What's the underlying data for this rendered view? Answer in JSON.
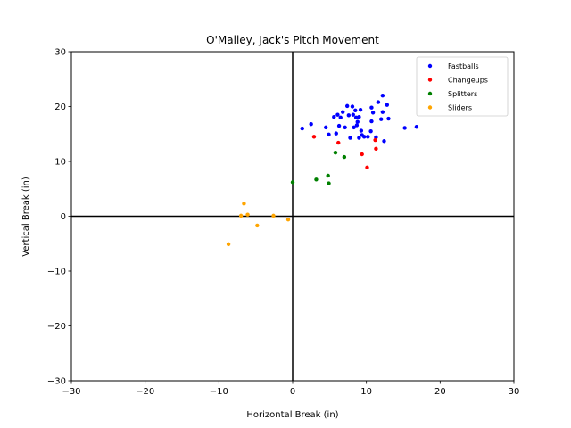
{
  "chart_data": {
    "type": "scatter",
    "title": "O'Malley, Jack's Pitch Movement",
    "xlabel": "Horizontal Break (in)",
    "ylabel": "Vertical Break (in)",
    "xlim": [
      -30,
      30
    ],
    "ylim": [
      -30,
      30
    ],
    "xticks": [
      -30,
      -20,
      -10,
      0,
      10,
      20,
      30
    ],
    "yticks": [
      -30,
      -20,
      -10,
      0,
      10,
      20,
      30
    ],
    "xtick_labels": [
      "−30",
      "−20",
      "−10",
      "0",
      "10",
      "20",
      "30"
    ],
    "ytick_labels": [
      "−30",
      "−20",
      "−10",
      "0",
      "10",
      "20",
      "30"
    ],
    "zero_lines": true,
    "grid": false,
    "legend_position": "top-right",
    "series": [
      {
        "name": "Fastballs",
        "color": "#0000ff",
        "points": [
          [
            1.3,
            16.0
          ],
          [
            2.5,
            16.8
          ],
          [
            4.5,
            16.2
          ],
          [
            4.9,
            14.9
          ],
          [
            5.6,
            18.1
          ],
          [
            5.9,
            15.1
          ],
          [
            6.1,
            18.5
          ],
          [
            6.5,
            18.0
          ],
          [
            6.3,
            16.5
          ],
          [
            6.8,
            19.0
          ],
          [
            7.1,
            16.2
          ],
          [
            7.4,
            20.1
          ],
          [
            7.6,
            18.4
          ],
          [
            7.8,
            14.3
          ],
          [
            8.1,
            20.0
          ],
          [
            8.2,
            18.5
          ],
          [
            8.3,
            16.2
          ],
          [
            8.5,
            19.3
          ],
          [
            8.6,
            18.0
          ],
          [
            8.7,
            16.6
          ],
          [
            8.8,
            17.2
          ],
          [
            9.0,
            14.3
          ],
          [
            9.0,
            18.1
          ],
          [
            9.2,
            19.4
          ],
          [
            9.3,
            15.6
          ],
          [
            9.4,
            14.8
          ],
          [
            9.7,
            14.5
          ],
          [
            10.2,
            14.5
          ],
          [
            10.6,
            15.5
          ],
          [
            10.7,
            17.3
          ],
          [
            10.7,
            19.8
          ],
          [
            10.9,
            18.9
          ],
          [
            11.3,
            14.4
          ],
          [
            11.6,
            20.8
          ],
          [
            12.0,
            17.7
          ],
          [
            12.2,
            22.0
          ],
          [
            12.2,
            19.0
          ],
          [
            12.4,
            13.7
          ],
          [
            12.8,
            20.3
          ],
          [
            13.0,
            17.8
          ],
          [
            15.2,
            16.1
          ],
          [
            16.8,
            16.3
          ]
        ]
      },
      {
        "name": "Changeups",
        "color": "#ff0000",
        "points": [
          [
            2.9,
            14.5
          ],
          [
            6.2,
            13.4
          ],
          [
            9.4,
            11.3
          ],
          [
            10.1,
            8.9
          ],
          [
            11.3,
            12.3
          ],
          [
            11.2,
            13.9
          ]
        ]
      },
      {
        "name": "Splitters",
        "color": "#008000",
        "points": [
          [
            0.0,
            6.2
          ],
          [
            3.2,
            6.7
          ],
          [
            4.8,
            7.4
          ],
          [
            4.9,
            6.0
          ],
          [
            5.8,
            11.6
          ],
          [
            7.0,
            10.8
          ]
        ]
      },
      {
        "name": "Sliders",
        "color": "#ffa500",
        "points": [
          [
            -6.6,
            2.3
          ],
          [
            -6.1,
            0.3
          ],
          [
            -7.0,
            0.1
          ],
          [
            -2.6,
            0.1
          ],
          [
            -4.8,
            -1.7
          ],
          [
            -0.6,
            -0.6
          ],
          [
            -8.7,
            -5.1
          ]
        ]
      }
    ]
  }
}
